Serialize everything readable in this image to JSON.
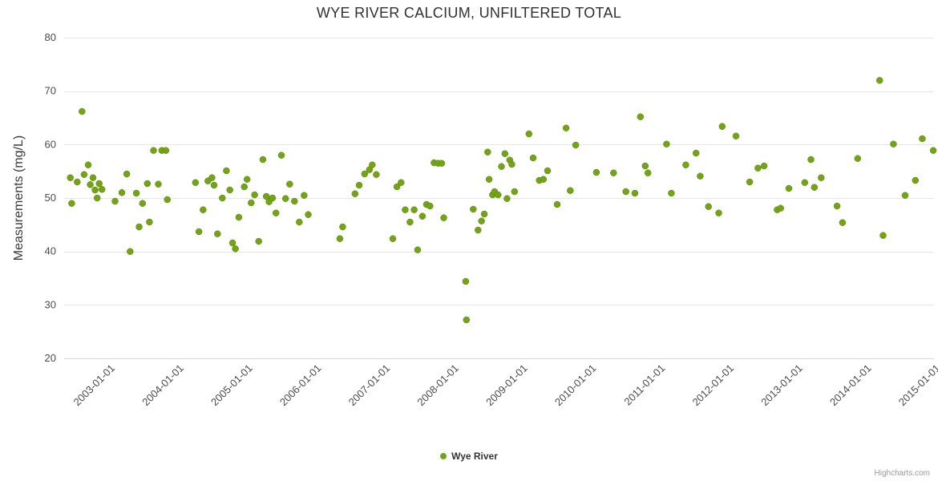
{
  "chart_data": {
    "type": "scatter",
    "title": "WYE RIVER CALCIUM, UNFILTERED TOTAL",
    "xlabel": "",
    "ylabel": "Measurements (mg/L)",
    "ylim": [
      20,
      80
    ],
    "yticks": [
      20,
      30,
      40,
      50,
      60,
      70,
      80
    ],
    "xlim": [
      2002.3,
      2014.95
    ],
    "xticks": [
      {
        "value": 2003,
        "label": "2003-01-01"
      },
      {
        "value": 2004,
        "label": "2004-01-01"
      },
      {
        "value": 2005,
        "label": "2005-01-01"
      },
      {
        "value": 2006,
        "label": "2006-01-01"
      },
      {
        "value": 2007,
        "label": "2007-01-01"
      },
      {
        "value": 2008,
        "label": "2008-01-01"
      },
      {
        "value": 2009,
        "label": "2009-01-01"
      },
      {
        "value": 2010,
        "label": "2010-01-01"
      },
      {
        "value": 2011,
        "label": "2011-01-01"
      },
      {
        "value": 2012,
        "label": "2012-01-01"
      },
      {
        "value": 2013,
        "label": "2013-01-01"
      },
      {
        "value": 2014,
        "label": "2014-01-01"
      },
      {
        "value": 2015,
        "label": "2015-01-01"
      }
    ],
    "grid": "horizontal",
    "gridline_color": "#e6e6e6",
    "axis_line_color": "#ccd6eb",
    "legend_position": "bottom-center",
    "marker_color": "#74a317",
    "series": [
      {
        "name": "Wye River",
        "points": [
          [
            2002.39,
            53.8
          ],
          [
            2002.41,
            49.0
          ],
          [
            2002.49,
            53.0
          ],
          [
            2002.56,
            66.2
          ],
          [
            2002.59,
            54.4
          ],
          [
            2002.65,
            56.2
          ],
          [
            2002.68,
            52.5
          ],
          [
            2002.72,
            53.8
          ],
          [
            2002.75,
            51.5
          ],
          [
            2002.78,
            50.0
          ],
          [
            2002.81,
            52.7
          ],
          [
            2002.85,
            51.6
          ],
          [
            2003.04,
            49.4
          ],
          [
            2003.14,
            51.0
          ],
          [
            2003.21,
            54.5
          ],
          [
            2003.26,
            40.0
          ],
          [
            2003.35,
            50.9
          ],
          [
            2003.39,
            44.6
          ],
          [
            2003.44,
            49.0
          ],
          [
            2003.51,
            52.7
          ],
          [
            2003.54,
            45.5
          ],
          [
            2003.6,
            58.9
          ],
          [
            2003.67,
            52.6
          ],
          [
            2003.72,
            58.9
          ],
          [
            2003.78,
            58.9
          ],
          [
            2003.8,
            49.7
          ],
          [
            2004.21,
            52.9
          ],
          [
            2004.26,
            43.7
          ],
          [
            2004.32,
            47.8
          ],
          [
            2004.39,
            53.2
          ],
          [
            2004.45,
            53.8
          ],
          [
            2004.48,
            52.4
          ],
          [
            2004.53,
            43.3
          ],
          [
            2004.6,
            50.0
          ],
          [
            2004.66,
            55.1
          ],
          [
            2004.71,
            51.5
          ],
          [
            2004.75,
            41.6
          ],
          [
            2004.79,
            40.5
          ],
          [
            2004.84,
            46.4
          ],
          [
            2004.92,
            52.1
          ],
          [
            2004.96,
            53.5
          ],
          [
            2005.02,
            49.1
          ],
          [
            2005.07,
            50.6
          ],
          [
            2005.13,
            41.9
          ],
          [
            2005.19,
            57.2
          ],
          [
            2005.24,
            50.3
          ],
          [
            2005.28,
            49.3
          ],
          [
            2005.33,
            50.0
          ],
          [
            2005.38,
            47.2
          ],
          [
            2005.46,
            58.0
          ],
          [
            2005.52,
            49.9
          ],
          [
            2005.58,
            52.6
          ],
          [
            2005.65,
            49.4
          ],
          [
            2005.72,
            45.5
          ],
          [
            2005.79,
            50.5
          ],
          [
            2005.85,
            46.9
          ],
          [
            2006.31,
            42.4
          ],
          [
            2006.35,
            44.6
          ],
          [
            2006.53,
            50.8
          ],
          [
            2006.59,
            52.4
          ],
          [
            2006.67,
            54.5
          ],
          [
            2006.74,
            55.3
          ],
          [
            2006.78,
            56.2
          ],
          [
            2006.84,
            54.4
          ],
          [
            2007.08,
            42.4
          ],
          [
            2007.14,
            52.1
          ],
          [
            2007.2,
            52.9
          ],
          [
            2007.26,
            47.8
          ],
          [
            2007.33,
            45.5
          ],
          [
            2007.39,
            47.8
          ],
          [
            2007.44,
            40.3
          ],
          [
            2007.51,
            46.6
          ],
          [
            2007.57,
            48.8
          ],
          [
            2007.62,
            48.5
          ],
          [
            2007.68,
            56.6
          ],
          [
            2007.74,
            56.5
          ],
          [
            2007.79,
            56.5
          ],
          [
            2007.82,
            46.3
          ],
          [
            2008.14,
            34.4
          ],
          [
            2008.15,
            27.2
          ],
          [
            2008.25,
            47.9
          ],
          [
            2008.32,
            44.0
          ],
          [
            2008.37,
            45.7
          ],
          [
            2008.41,
            47.0
          ],
          [
            2008.46,
            58.6
          ],
          [
            2008.48,
            53.5
          ],
          [
            2008.53,
            50.6
          ],
          [
            2008.56,
            51.2
          ],
          [
            2008.61,
            50.6
          ],
          [
            2008.66,
            55.9
          ],
          [
            2008.71,
            58.3
          ],
          [
            2008.74,
            49.9
          ],
          [
            2008.78,
            57.1
          ],
          [
            2008.81,
            56.3
          ],
          [
            2008.85,
            51.2
          ],
          [
            2009.06,
            62.0
          ],
          [
            2009.12,
            57.5
          ],
          [
            2009.21,
            53.3
          ],
          [
            2009.27,
            53.5
          ],
          [
            2009.33,
            55.1
          ],
          [
            2009.47,
            48.8
          ],
          [
            2009.6,
            63.1
          ],
          [
            2009.66,
            51.4
          ],
          [
            2009.74,
            59.9
          ],
          [
            2010.04,
            54.8
          ],
          [
            2010.29,
            54.7
          ],
          [
            2010.47,
            51.2
          ],
          [
            2010.6,
            50.9
          ],
          [
            2010.68,
            65.2
          ],
          [
            2010.75,
            56.0
          ],
          [
            2010.79,
            54.7
          ],
          [
            2011.06,
            60.1
          ],
          [
            2011.13,
            50.9
          ],
          [
            2011.34,
            56.2
          ],
          [
            2011.49,
            58.4
          ],
          [
            2011.55,
            54.1
          ],
          [
            2011.67,
            48.4
          ],
          [
            2011.82,
            47.2
          ],
          [
            2011.87,
            63.4
          ],
          [
            2012.07,
            61.6
          ],
          [
            2012.27,
            53.0
          ],
          [
            2012.39,
            55.6
          ],
          [
            2012.48,
            56.0
          ],
          [
            2012.67,
            47.8
          ],
          [
            2012.72,
            48.1
          ],
          [
            2012.84,
            51.8
          ],
          [
            2013.07,
            52.9
          ],
          [
            2013.16,
            57.2
          ],
          [
            2013.21,
            52.0
          ],
          [
            2013.31,
            53.8
          ],
          [
            2013.54,
            48.5
          ],
          [
            2013.62,
            45.4
          ],
          [
            2013.84,
            57.4
          ],
          [
            2014.16,
            72.0
          ],
          [
            2014.21,
            43.0
          ],
          [
            2014.36,
            60.1
          ],
          [
            2014.53,
            50.5
          ],
          [
            2014.68,
            53.3
          ],
          [
            2014.78,
            61.1
          ],
          [
            2014.94,
            58.9
          ]
        ]
      }
    ]
  },
  "credits": {
    "label": "Highcharts.com"
  }
}
